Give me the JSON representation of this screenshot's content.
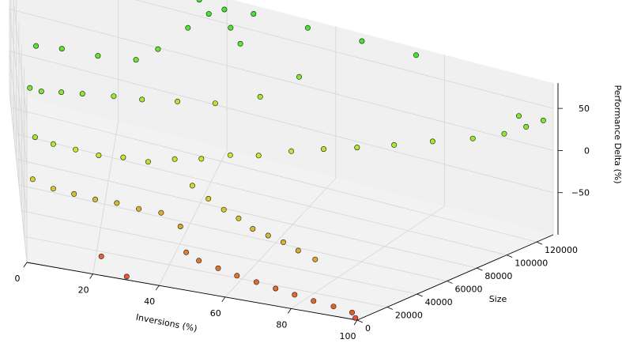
{
  "chart_data": {
    "type": "scatter",
    "projection": "3d",
    "title": "",
    "xlabel": "Inversions (%)",
    "ylabel": "Size",
    "zlabel": "Performance Delta (%)",
    "xlim": [
      0,
      100
    ],
    "ylim": [
      0,
      131072
    ],
    "zlim": [
      -100,
      80
    ],
    "x_ticks": [
      0,
      20,
      40,
      60,
      80,
      100
    ],
    "y_ticks": [
      0,
      20000,
      40000,
      60000,
      80000,
      100000,
      120000
    ],
    "z_ticks": [
      -50,
      0,
      50
    ],
    "x_tick_labels": [
      "0",
      "20",
      "40",
      "60",
      "80",
      "100"
    ],
    "y_tick_labels": [
      "0",
      "20000",
      "40000",
      "60000",
      "80000",
      "100000",
      "120000"
    ],
    "z_tick_labels": [
      "−50",
      "0",
      "50"
    ],
    "grid": true,
    "legend": "none",
    "colormap": {
      "low": "#e8421a",
      "mid": "#c8e61a",
      "high": "#1ee61a"
    },
    "points": [
      [
        2,
        36000,
        40
      ],
      [
        5,
        40000,
        34
      ],
      [
        10,
        48000,
        28
      ],
      [
        15,
        54000,
        24
      ],
      [
        22,
        63000,
        18
      ],
      [
        28,
        70000,
        13
      ],
      [
        35,
        80000,
        8
      ],
      [
        42,
        90000,
        4
      ],
      [
        50,
        100000,
        12
      ],
      [
        56,
        112000,
        32
      ],
      [
        4,
        60000,
        58
      ],
      [
        10,
        66000,
        54
      ],
      [
        18,
        72000,
        48
      ],
      [
        26,
        80000,
        44
      ],
      [
        30,
        90000,
        50
      ],
      [
        35,
        104000,
        66
      ],
      [
        38,
        116000,
        74
      ],
      [
        40,
        126000,
        72
      ],
      [
        42,
        118000,
        62
      ],
      [
        45,
        108000,
        58
      ],
      [
        20,
        130000,
        84
      ],
      [
        25,
        130000,
        87
      ],
      [
        30,
        130000,
        84
      ],
      [
        12,
        122000,
        76
      ],
      [
        35,
        130000,
        71
      ],
      [
        45,
        130000,
        71
      ],
      [
        55,
        130000,
        71
      ],
      [
        65,
        130000,
        72
      ],
      [
        75,
        130000,
        72
      ],
      [
        3,
        20000,
        8
      ],
      [
        8,
        22000,
        2
      ],
      [
        14,
        26000,
        -4
      ],
      [
        20,
        30000,
        -10
      ],
      [
        26,
        36000,
        -14
      ],
      [
        32,
        40000,
        -18
      ],
      [
        38,
        46000,
        -16
      ],
      [
        44,
        50000,
        -14
      ],
      [
        50,
        56000,
        -10
      ],
      [
        56,
        60000,
        -8
      ],
      [
        62,
        68000,
        -4
      ],
      [
        68,
        74000,
        0
      ],
      [
        74,
        80000,
        4
      ],
      [
        80,
        88000,
        8
      ],
      [
        86,
        96000,
        14
      ],
      [
        92,
        104000,
        20
      ],
      [
        96,
        112000,
        26
      ],
      [
        98,
        120000,
        32
      ],
      [
        95,
        126000,
        36
      ],
      [
        99,
        128000,
        36
      ],
      [
        45,
        28000,
        -20
      ],
      [
        50,
        24000,
        -26
      ],
      [
        55,
        20000,
        -30
      ],
      [
        60,
        16000,
        -32
      ],
      [
        65,
        12000,
        -36
      ],
      [
        70,
        10000,
        -38
      ],
      [
        75,
        8000,
        -40
      ],
      [
        80,
        6000,
        -44
      ],
      [
        85,
        6000,
        -50
      ],
      [
        2,
        8000,
        -22
      ],
      [
        8,
        8000,
        -28
      ],
      [
        14,
        10000,
        -32
      ],
      [
        20,
        12000,
        -36
      ],
      [
        26,
        14000,
        -38
      ],
      [
        32,
        16000,
        -42
      ],
      [
        38,
        18000,
        -44
      ],
      [
        44,
        14000,
        -50
      ],
      [
        46,
        12000,
        -74
      ],
      [
        50,
        10000,
        -78
      ],
      [
        56,
        8000,
        -80
      ],
      [
        62,
        6000,
        -82
      ],
      [
        68,
        5000,
        -84
      ],
      [
        74,
        4000,
        -86
      ],
      [
        80,
        3000,
        -88
      ],
      [
        86,
        2000,
        -90
      ],
      [
        92,
        2000,
        -92
      ],
      [
        98,
        1000,
        -94
      ],
      [
        99,
        1000,
        -99
      ],
      [
        30,
        2000,
        -99
      ],
      [
        22,
        8000,
        -90
      ]
    ]
  }
}
